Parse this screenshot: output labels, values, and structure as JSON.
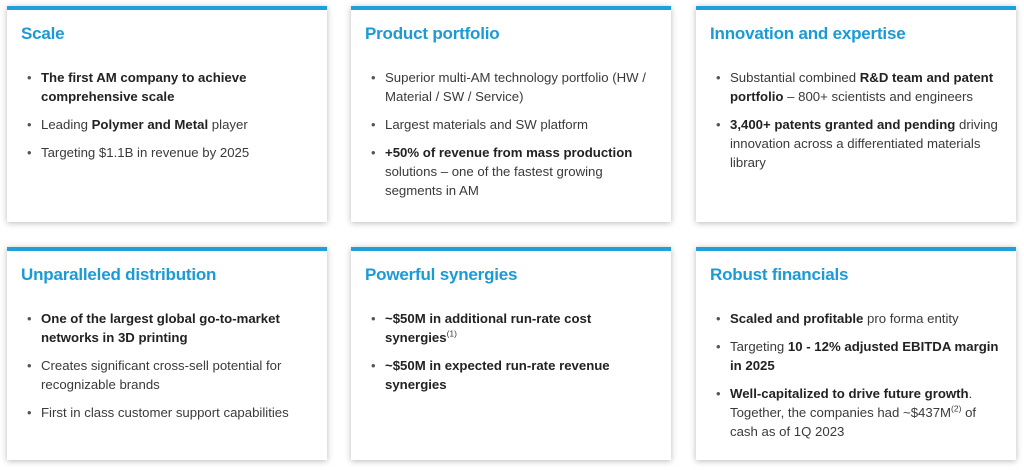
{
  "cards": [
    {
      "title": "Scale",
      "items": [
        {
          "b1": "The first AM company to achieve comprehensive scale"
        },
        {
          "t1": "Leading ",
          "b1": "Polymer and Metal",
          "t2": " player"
        },
        {
          "t1": "Targeting $1.1B in revenue by 2025"
        }
      ]
    },
    {
      "title": "Product portfolio",
      "items": [
        {
          "t1": "Superior multi-AM technology portfolio (HW / Material / SW / Service)"
        },
        {
          "t1": "Largest materials and SW platform"
        },
        {
          "b1": "+50% of revenue from mass production",
          "t1": " solutions – one of the fastest growing segments in AM"
        }
      ]
    },
    {
      "title": "Innovation and expertise",
      "items": [
        {
          "t1": "Substantial combined ",
          "b1": "R&D team and patent portfolio",
          "t2": " – 800+ scientists and engineers"
        },
        {
          "b1": "3,400+ patents granted and pending",
          "t1": " driving innovation across a differentiated materials library"
        }
      ]
    },
    {
      "title": "Unparalleled distribution",
      "items": [
        {
          "b1": "One of the largest global go-to-market networks in 3D printing"
        },
        {
          "t1": "Creates significant cross-sell potential for recognizable brands"
        },
        {
          "t1": "First in class customer support capabilities"
        }
      ]
    },
    {
      "title": "Powerful synergies",
      "items": [
        {
          "b1": "~$50M in additional run-rate cost synergies",
          "sup": "(1)"
        },
        {
          "b1": "~$50M in expected run-rate revenue synergies"
        }
      ]
    },
    {
      "title": "Robust financials",
      "items": [
        {
          "b1": "Scaled and profitable",
          "t1": " pro forma entity"
        },
        {
          "t1": "Targeting ",
          "b1": "10 - 12% adjusted EBITDA margin in 2025"
        },
        {
          "b1": "Well-capitalized to drive future growth",
          "t1": ". Together, the companies had ~$437M",
          "sup": "(2)",
          "t2": " of cash as of 1Q 2023"
        }
      ]
    }
  ],
  "bullet_glyph": "•"
}
